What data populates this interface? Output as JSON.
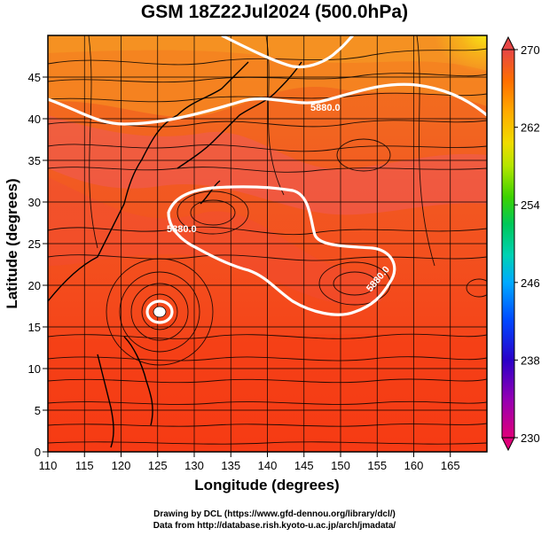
{
  "title": "GSM 18Z22Jul2024 (500.0hPa)",
  "x_axis": {
    "label": "Longitude (degrees)",
    "ticks": [
      "110",
      "115",
      "120",
      "125",
      "130",
      "135",
      "140",
      "145",
      "150",
      "155",
      "160",
      "165"
    ],
    "range": [
      110,
      170
    ]
  },
  "y_axis": {
    "label": "Latitude  (degrees)",
    "ticks": [
      "0",
      "5",
      "10",
      "15",
      "20",
      "25",
      "30",
      "35",
      "40",
      "45"
    ],
    "range": [
      0,
      50
    ]
  },
  "colorbar": {
    "ticks": [
      "270",
      "262",
      "254",
      "246",
      "238",
      "230"
    ],
    "range": [
      230,
      270
    ],
    "colors": [
      "#e0007a",
      "#7a00b4",
      "#1e00c8",
      "#0050ff",
      "#00b4ff",
      "#00d2a0",
      "#00c850",
      "#50dc00",
      "#c8e600",
      "#fad200",
      "#ffa000",
      "#ff6a00",
      "#f23c14",
      "#e64646"
    ]
  },
  "contours": [
    {
      "label": "5880.0",
      "color": "#ffffff"
    },
    {
      "label": "5880.0",
      "color": "#ffffff"
    },
    {
      "label": "5880.0",
      "color": "#ffffff"
    },
    {
      "label": "5880.0",
      "color": "#ffffff"
    }
  ],
  "footer": {
    "line1": "Drawing by DCL (https://www.gfd-dennou.org/library/dcl/)",
    "line2": "Data from http://database.rish.kyoto-u.ac.jp/arch/jmadata/"
  },
  "field_colors": {
    "base": "#f05a1a",
    "warm_low_lat": "#f63c1c",
    "cool_north": "#f5841e",
    "yellow_ne": "#f5dc14",
    "pink_band": "#ee5a5a"
  }
}
